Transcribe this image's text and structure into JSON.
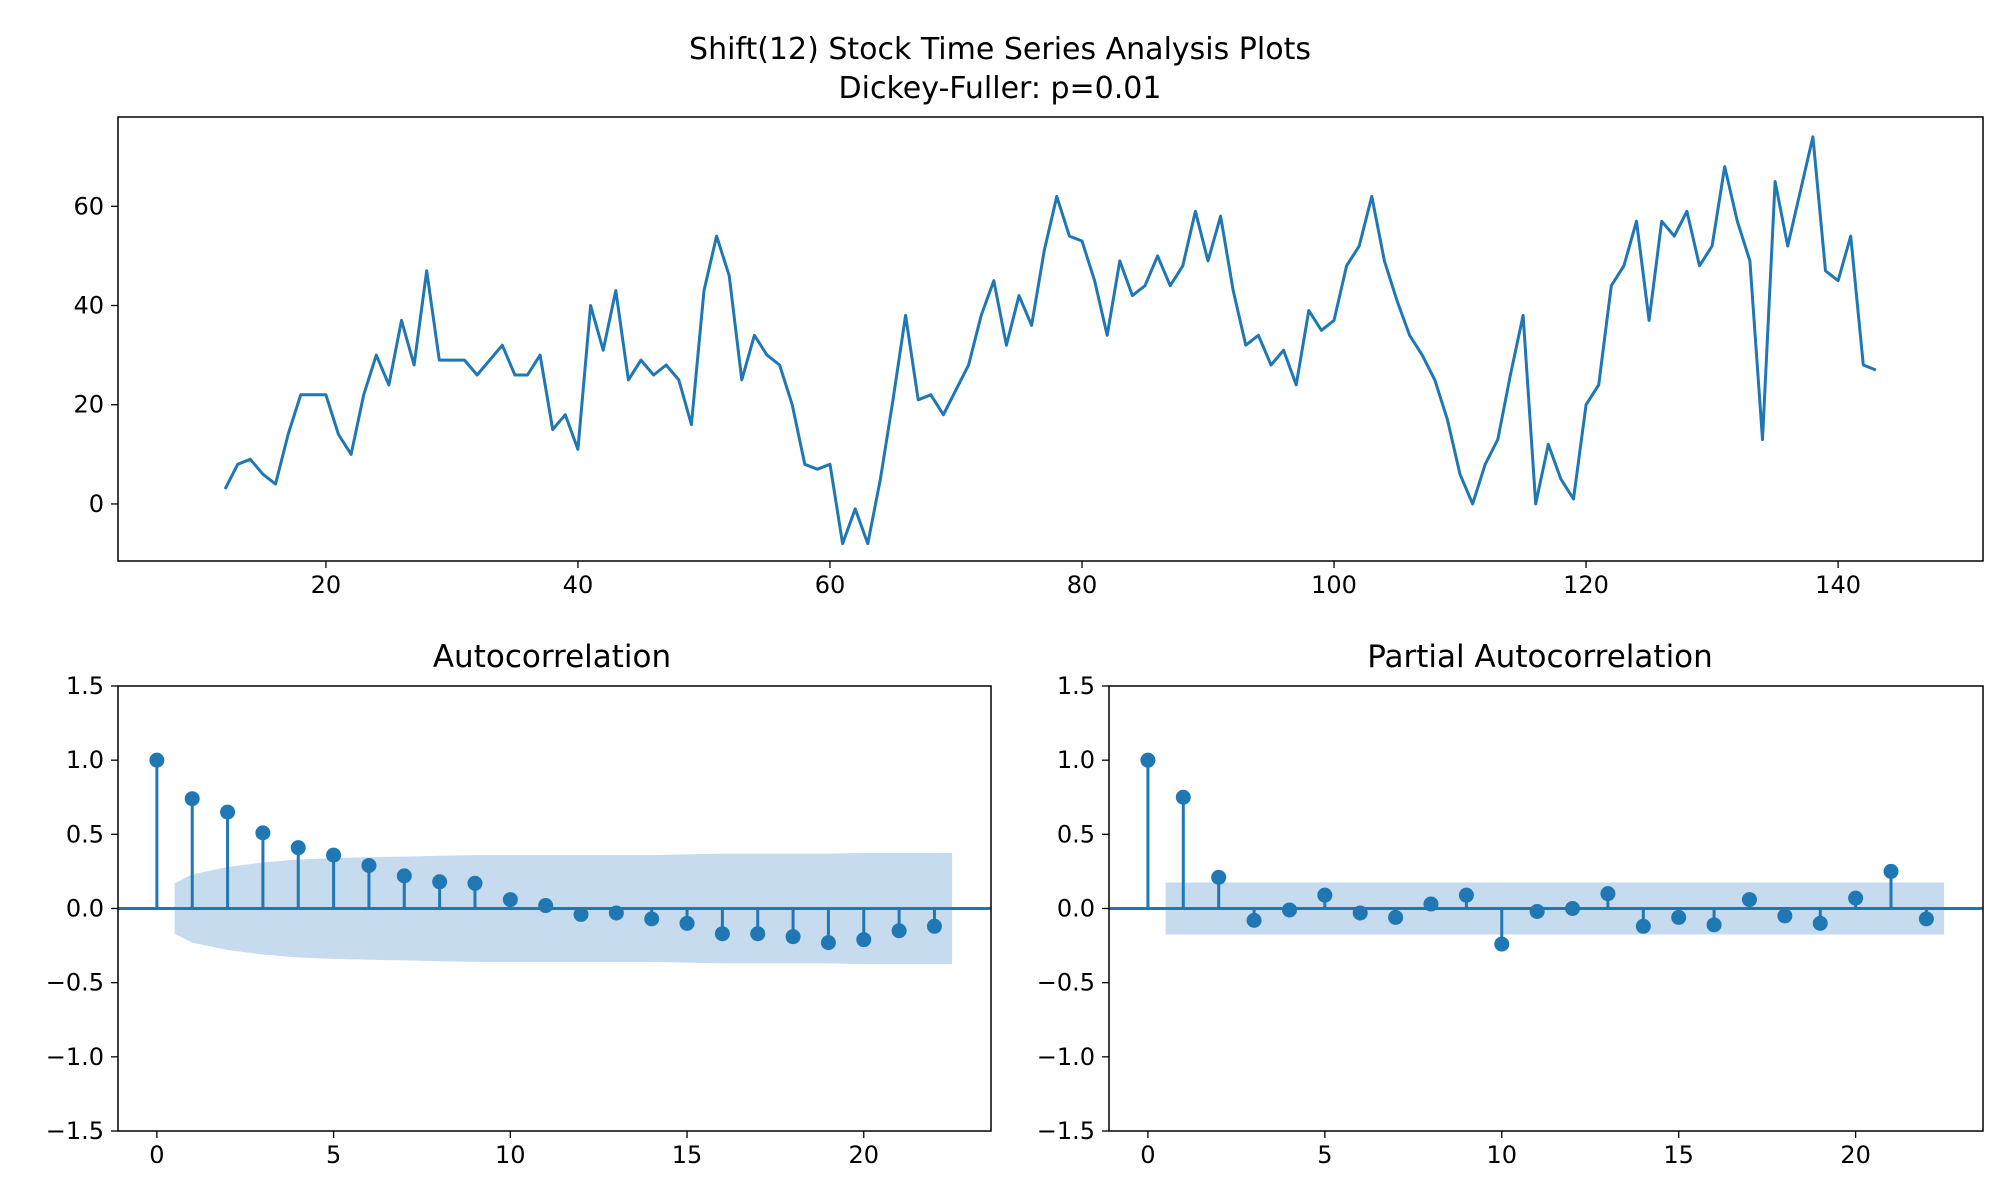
{
  "figure": {
    "title_line1": "Shift(12) Stock Time Series Analysis Plots",
    "title_line2": "Dickey-Fuller: p=0.01"
  },
  "colors": {
    "series": "#1f77b4",
    "confidence_band": "#c6dbed",
    "axes": "#000000"
  },
  "chart_data": [
    {
      "type": "line",
      "title": "",
      "x_start": 12,
      "values": [
        3,
        8,
        9,
        6,
        4,
        14,
        22,
        22,
        22,
        14,
        10,
        22,
        30,
        24,
        37,
        28,
        47,
        29,
        29,
        29,
        26,
        29,
        32,
        26,
        26,
        30,
        15,
        18,
        11,
        40,
        31,
        43,
        25,
        29,
        26,
        28,
        25,
        16,
        43,
        54,
        46,
        25,
        34,
        30,
        28,
        20,
        8,
        7,
        8,
        -8,
        -1,
        -8,
        5,
        21,
        38,
        21,
        22,
        18,
        23,
        28,
        38,
        45,
        32,
        42,
        36,
        51,
        62,
        54,
        53,
        45,
        34,
        49,
        42,
        44,
        50,
        44,
        48,
        59,
        49,
        58,
        43,
        32,
        34,
        28,
        31,
        24,
        39,
        35,
        37,
        48,
        52,
        62,
        49,
        41,
        34,
        30,
        25,
        17,
        6,
        0,
        8,
        13,
        26,
        38,
        0,
        12,
        5,
        1,
        20,
        24,
        44,
        48,
        57,
        37,
        57,
        54,
        59,
        48,
        52,
        68,
        57,
        49,
        13,
        65,
        52,
        63,
        74,
        47,
        45,
        54,
        28,
        27
      ],
      "xlim": [
        3.5,
        151.5
      ],
      "ylim": [
        -11.5,
        78
      ],
      "xticks": [
        20,
        40,
        60,
        80,
        100,
        120,
        140
      ],
      "yticks": [
        0,
        20,
        40,
        60
      ]
    },
    {
      "type": "stem",
      "title": "Autocorrelation",
      "lags": [
        0,
        1,
        2,
        3,
        4,
        5,
        6,
        7,
        8,
        9,
        10,
        11,
        12,
        13,
        14,
        15,
        16,
        17,
        18,
        19,
        20,
        21,
        22
      ],
      "values": [
        1.0,
        0.74,
        0.65,
        0.51,
        0.41,
        0.36,
        0.29,
        0.22,
        0.18,
        0.17,
        0.06,
        0.02,
        -0.04,
        -0.03,
        -0.07,
        -0.1,
        -0.17,
        -0.17,
        -0.19,
        -0.23,
        -0.21,
        -0.15,
        -0.12
      ],
      "confidence_upper": [
        0.17,
        0.23,
        0.28,
        0.31,
        0.33,
        0.34,
        0.345,
        0.35,
        0.355,
        0.36,
        0.36,
        0.36,
        0.36,
        0.36,
        0.36,
        0.365,
        0.37,
        0.37,
        0.37,
        0.37,
        0.375,
        0.375,
        0.375
      ],
      "xlim": [
        -1.1,
        23.6
      ],
      "ylim": [
        -1.5,
        1.5
      ],
      "xticks": [
        0,
        5,
        10,
        15,
        20
      ],
      "yticks": [
        -1.5,
        -1.0,
        -0.5,
        0.0,
        0.5,
        1.0,
        1.5
      ]
    },
    {
      "type": "stem",
      "title": "Partial Autocorrelation",
      "lags": [
        0,
        1,
        2,
        3,
        4,
        5,
        6,
        7,
        8,
        9,
        10,
        11,
        12,
        13,
        14,
        15,
        16,
        17,
        18,
        19,
        20,
        21,
        22
      ],
      "values": [
        1.0,
        0.75,
        0.21,
        -0.08,
        -0.01,
        0.09,
        -0.03,
        -0.06,
        0.03,
        0.09,
        -0.24,
        -0.02,
        0.0,
        0.1,
        -0.12,
        -0.06,
        -0.11,
        0.06,
        -0.05,
        -0.1,
        0.07,
        0.25,
        -0.07
      ],
      "confidence_upper": 0.175,
      "xlim": [
        -1.1,
        23.6
      ],
      "ylim": [
        -1.5,
        1.5
      ],
      "xticks": [
        0,
        5,
        10,
        15,
        20
      ],
      "yticks": [
        -1.5,
        -1.0,
        -0.5,
        0.0,
        0.5,
        1.0,
        1.5
      ]
    }
  ]
}
